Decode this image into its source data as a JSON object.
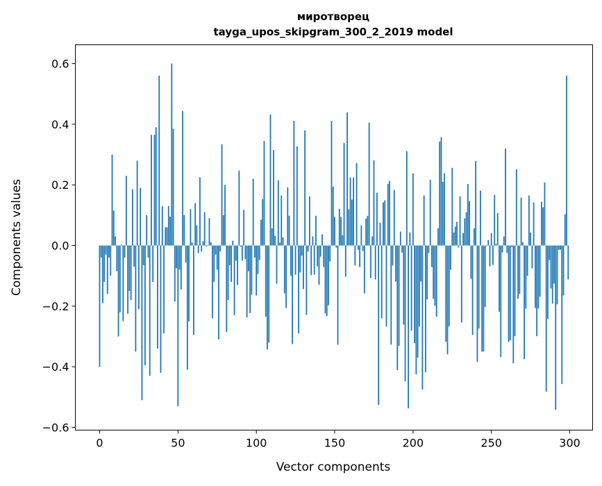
{
  "chart_data": {
    "type": "bar",
    "title": [
      "миротворец",
      "tayga_upos_skipgram_300_2_2019 model"
    ],
    "xlabel": "Vector components",
    "ylabel": "Components values",
    "xlim": [
      -15.5,
      314.6
    ],
    "ylim": [
      -0.609,
      0.662
    ],
    "xticks": [
      0,
      50,
      100,
      150,
      200,
      250,
      300
    ],
    "xtick_labels": [
      "0",
      "50",
      "100",
      "150",
      "200",
      "250",
      "300"
    ],
    "yticks": [
      -0.6,
      -0.4,
      -0.2,
      0.0,
      0.2,
      0.4,
      0.6
    ],
    "ytick_labels": [
      "−0.6",
      "−0.4",
      "−0.2",
      "0.0",
      "0.2",
      "0.4",
      "0.6"
    ],
    "grid": false,
    "bar_color": "#1f77b4",
    "values": [
      -0.4,
      -0.04,
      -0.19,
      -0.12,
      -0.03,
      -0.16,
      -0.04,
      -0.1,
      0.3,
      0.115,
      0.03,
      -0.085,
      -0.3,
      -0.22,
      0.003,
      -0.25,
      -0.04,
      0.23,
      -0.225,
      -0.15,
      -0.18,
      0.185,
      -0.07,
      -0.35,
      0.28,
      -0.21,
      0.19,
      -0.51,
      -0.065,
      -0.395,
      0.1,
      -0.04,
      -0.43,
      0.365,
      -0.12,
      0.365,
      0.39,
      -0.34,
      0.56,
      -0.42,
      0.13,
      -0.29,
      0.06,
      0.06,
      0.13,
      0.095,
      0.6,
      0.385,
      -0.185,
      -0.075,
      -0.53,
      -0.08,
      -0.145,
      0.443,
      0.1,
      -0.056,
      -0.41,
      -0.25,
      0.12,
      0.01,
      -0.295,
      0.14,
      0.066,
      -0.025,
      0.225,
      -0.02,
      0.014,
      0.11,
      -0.003,
      -0.002,
      0.09,
      0.011,
      -0.24,
      -0.12,
      -0.03,
      -0.08,
      -0.31,
      -0.02,
      0.334,
      0.1,
      0.2,
      -0.285,
      -0.18,
      -0.065,
      -0.12,
      0.016,
      -0.23,
      -0.05,
      -0.13,
      0.247,
      -0.004,
      -0.05,
      0.117,
      -0.045,
      -0.237,
      -0.085,
      -0.223,
      -0.162,
      0.22,
      -0.04,
      -0.165,
      -0.094,
      -0.048,
      0.085,
      0.153,
      0.345,
      -0.235,
      -0.343,
      -0.32,
      0.432,
      0.057,
      0.315,
      0.032,
      -0.126,
      0.215,
      0.009,
      0.165,
      0.027,
      -0.158,
      -0.206,
      0.192,
      0.098,
      -0.1,
      -0.325,
      0.411,
      -0.096,
      0.327,
      -0.29,
      -0.089,
      -0.034,
      -0.144,
      0.38,
      -0.229,
      -0.02,
      0.162,
      -0.098,
      0.03,
      -0.096,
      0.098,
      -0.069,
      -0.13,
      -0.037,
      0.037,
      -0.071,
      -0.224,
      -0.233,
      -0.197,
      -0.053,
      0.411,
      0.194,
      0.094,
      -0.007,
      -0.327,
      0.121,
      0.094,
      0.034,
      0.338,
      -0.103,
      0.439,
      0.119,
      0.224,
      0.151,
      0.224,
      -0.066,
      0.272,
      -0.014,
      -0.071,
      0.066,
      -0.018,
      -0.158,
      0.089,
      0.098,
      0.405,
      -0.107,
      0.03,
      0.281,
      -0.112,
      0.174,
      -0.526,
      0.075,
      -0.24,
      0.142,
      0.149,
      -0.267,
      0.203,
      0.213,
      -0.327,
      -0.066,
      0.183,
      -0.119,
      -0.411,
      -0.331,
      0.046,
      -0.023,
      -0.261,
      -0.448,
      0.311,
      -0.537,
      0.043,
      -0.281,
      0.238,
      -0.322,
      -0.425,
      -0.37,
      -0.267,
      -0.119,
      -0.475,
      0.165,
      -0.418,
      -0.178,
      -0.025,
      0.217,
      -0.071,
      -0.176,
      -0.199,
      -0.235,
      0.057,
      0.343,
      0.357,
      0.21,
      0.238,
      -0.318,
      -0.359,
      -0.267,
      -0.08,
      0.256,
      0.043,
      0.062,
      0.078,
      -0.007,
      0.162,
      -0.254,
      0.041,
      0.089,
      0.11,
      0.203,
      0.146,
      -0.11,
      -0.295,
      0.057,
      0.279,
      -0.384,
      -0.274,
      0.181,
      -0.35,
      -0.35,
      -0.203,
      -0.002,
      0.018,
      -0.069,
      0.041,
      -0.064,
      0.167,
      0.005,
      0.107,
      -0.219,
      -0.368,
      -0.023,
      0.03,
      0.32,
      -0.025,
      -0.318,
      -0.313,
      -0.005,
      -0.389,
      -0.299,
      0.251,
      -0.176,
      -0.16,
      0.158,
      0.011,
      -0.375,
      -0.208,
      -0.1,
      0.165,
      0.043,
      -0.075,
      0.142,
      -0.206,
      -0.299,
      -0.208,
      -0.169,
      0.144,
      0.126,
      0.208,
      -0.482,
      -0.242,
      -0.048,
      -0.142,
      -0.192,
      -0.126,
      -0.542,
      -0.194,
      -0.014,
      -0.014,
      -0.457,
      -0.165,
      0.103,
      0.56,
      -0.112
    ]
  }
}
